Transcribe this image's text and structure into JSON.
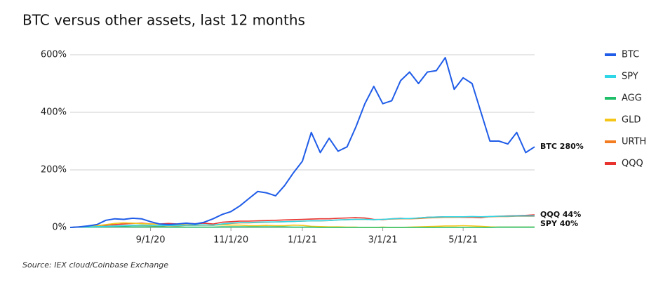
{
  "chart_data": {
    "type": "line",
    "title": "BTC versus other assets, last 12 months",
    "source": "Source: IEX cloud/Coinbase Exchange",
    "categories": [
      null,
      null,
      null,
      null,
      null,
      null,
      null,
      null,
      null,
      "9/1/20",
      null,
      null,
      null,
      null,
      null,
      null,
      null,
      null,
      "11/1/20",
      null,
      null,
      null,
      null,
      null,
      null,
      null,
      "1/1/21",
      null,
      null,
      null,
      null,
      null,
      null,
      null,
      null,
      "3/1/21",
      null,
      null,
      null,
      null,
      null,
      null,
      null,
      null,
      "5/1/21",
      null,
      null,
      null,
      null,
      null,
      null,
      null,
      null
    ],
    "ylim": [
      0,
      600
    ],
    "yticks": [
      {
        "value": 0,
        "label": "0%"
      },
      {
        "value": 200,
        "label": "200%"
      },
      {
        "value": 400,
        "label": "400%"
      },
      {
        "value": 600,
        "label": "600%"
      }
    ],
    "grid": true,
    "legend": "right",
    "series": [
      {
        "name": "BTC",
        "color": "#1f5ce8",
        "end_label": "BTC 280%",
        "values": [
          0,
          2,
          5,
          10,
          25,
          30,
          28,
          32,
          30,
          20,
          12,
          10,
          12,
          15,
          12,
          18,
          30,
          45,
          55,
          75,
          100,
          125,
          120,
          110,
          145,
          190,
          230,
          330,
          260,
          310,
          265,
          280,
          350,
          430,
          490,
          430,
          440,
          510,
          540,
          500,
          540,
          545,
          590,
          480,
          520,
          500,
          400,
          300,
          300,
          290,
          330,
          260,
          280
        ]
      },
      {
        "name": "SPY",
        "color": "#2fd6e6",
        "end_label": "SPY 40%",
        "values": [
          0,
          1,
          2,
          3,
          4,
          5,
          6,
          7,
          8,
          7,
          6,
          7,
          6,
          8,
          8,
          9,
          8,
          12,
          15,
          17,
          17,
          18,
          19,
          19,
          20,
          21,
          22,
          23,
          23,
          24,
          26,
          27,
          28,
          28,
          27,
          28,
          30,
          31,
          31,
          33,
          35,
          36,
          37,
          37,
          37,
          38,
          37,
          38,
          39,
          39,
          40,
          40,
          40
        ]
      },
      {
        "name": "AGG",
        "color": "#1fbf6a",
        "values": [
          0,
          1,
          1,
          2,
          2,
          3,
          3,
          2,
          2,
          2,
          2,
          1,
          1,
          1,
          1,
          1,
          1,
          2,
          2,
          2,
          2,
          2,
          2,
          2,
          2,
          1,
          1,
          1,
          0,
          0,
          0,
          0,
          0,
          0,
          0,
          0,
          0,
          0,
          0,
          0,
          0,
          0,
          0,
          0,
          0,
          0,
          0,
          0,
          1,
          1,
          1,
          1,
          1
        ]
      },
      {
        "name": "GLD",
        "color": "#f5c518",
        "values": [
          0,
          2,
          4,
          6,
          10,
          14,
          16,
          15,
          13,
          12,
          11,
          10,
          10,
          9,
          9,
          9,
          8,
          9,
          8,
          8,
          6,
          6,
          7,
          6,
          6,
          8,
          7,
          4,
          3,
          2,
          2,
          1,
          1,
          0,
          0,
          1,
          0,
          0,
          1,
          2,
          3,
          4,
          5,
          5,
          6,
          5,
          4,
          2,
          1,
          1,
          1,
          1,
          1
        ]
      },
      {
        "name": "URTH",
        "color": "#f47c20",
        "values": [
          0,
          1,
          2,
          3,
          4,
          5,
          6,
          7,
          7,
          6,
          5,
          6,
          5,
          7,
          7,
          8,
          7,
          11,
          14,
          16,
          16,
          17,
          18,
          19,
          20,
          21,
          22,
          23,
          23,
          24,
          26,
          27,
          28,
          28,
          27,
          28,
          29,
          30,
          30,
          31,
          33,
          34,
          35,
          35,
          36,
          37,
          36,
          37,
          38,
          38,
          39,
          39,
          39
        ]
      },
      {
        "name": "QQQ",
        "color": "#e8322e",
        "end_label": "QQQ 44%",
        "values": [
          0,
          2,
          4,
          6,
          8,
          10,
          12,
          14,
          15,
          12,
          12,
          14,
          12,
          14,
          13,
          15,
          12,
          18,
          20,
          22,
          22,
          23,
          24,
          25,
          26,
          27,
          28,
          29,
          30,
          30,
          32,
          33,
          34,
          33,
          28,
          27,
          30,
          32,
          30,
          33,
          35,
          36,
          37,
          36,
          35,
          35,
          34,
          38,
          39,
          40,
          41,
          42,
          44
        ]
      }
    ]
  }
}
